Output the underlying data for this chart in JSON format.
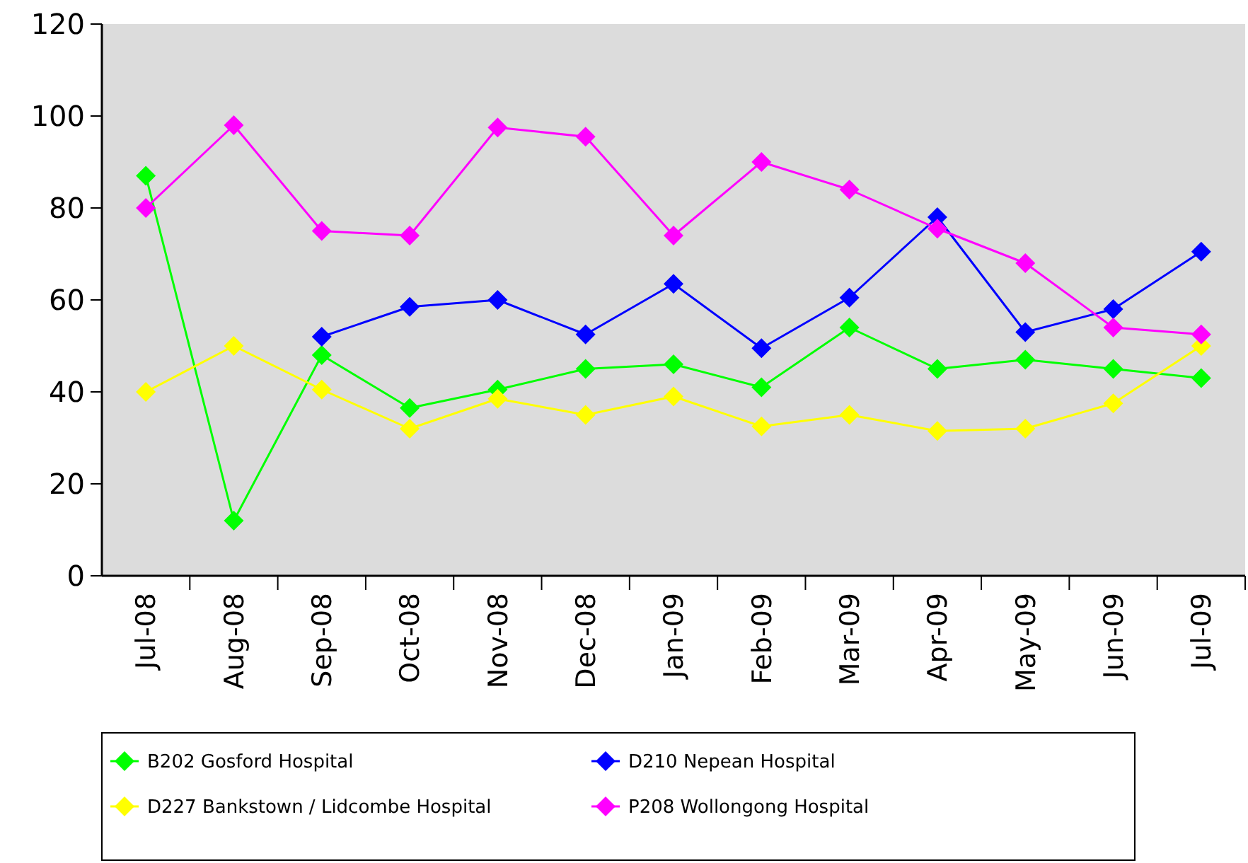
{
  "chart_data": {
    "type": "line",
    "categories": [
      "Jul-08",
      "Aug-08",
      "Sep-08",
      "Oct-08",
      "Nov-08",
      "Dec-08",
      "Jan-09",
      "Feb-09",
      "Mar-09",
      "Apr-09",
      "May-09",
      "Jun-09",
      "Jul-09"
    ],
    "series": [
      {
        "name": "B202 Gosford Hospital",
        "color": "#00ff00",
        "values": [
          87,
          12,
          48,
          36.5,
          40.5,
          45,
          46,
          41,
          54,
          45,
          47,
          45,
          43
        ]
      },
      {
        "name": "D210 Nepean Hospital",
        "color": "#0000ff",
        "values": [
          null,
          null,
          52,
          58.5,
          60,
          52.5,
          63.5,
          49.5,
          60.5,
          78,
          53,
          58,
          70.5
        ]
      },
      {
        "name": "D227 Bankstown / Lidcombe Hospital",
        "color": "#ffff00",
        "values": [
          40,
          50,
          40.5,
          32,
          38.5,
          35,
          39,
          32.5,
          35,
          31.5,
          32,
          37.5,
          50
        ]
      },
      {
        "name": "P208 Wollongong Hospital",
        "color": "#ff00ff",
        "values": [
          80,
          98,
          75,
          74,
          97.5,
          95.5,
          74,
          90,
          84,
          75.5,
          68,
          54,
          52.5
        ]
      }
    ],
    "ylim": [
      0,
      120
    ],
    "yticks": [
      0,
      20,
      40,
      60,
      80,
      100,
      120
    ],
    "grid": false,
    "legend": "bottom",
    "marker": "diamond",
    "line_style": "solid"
  }
}
